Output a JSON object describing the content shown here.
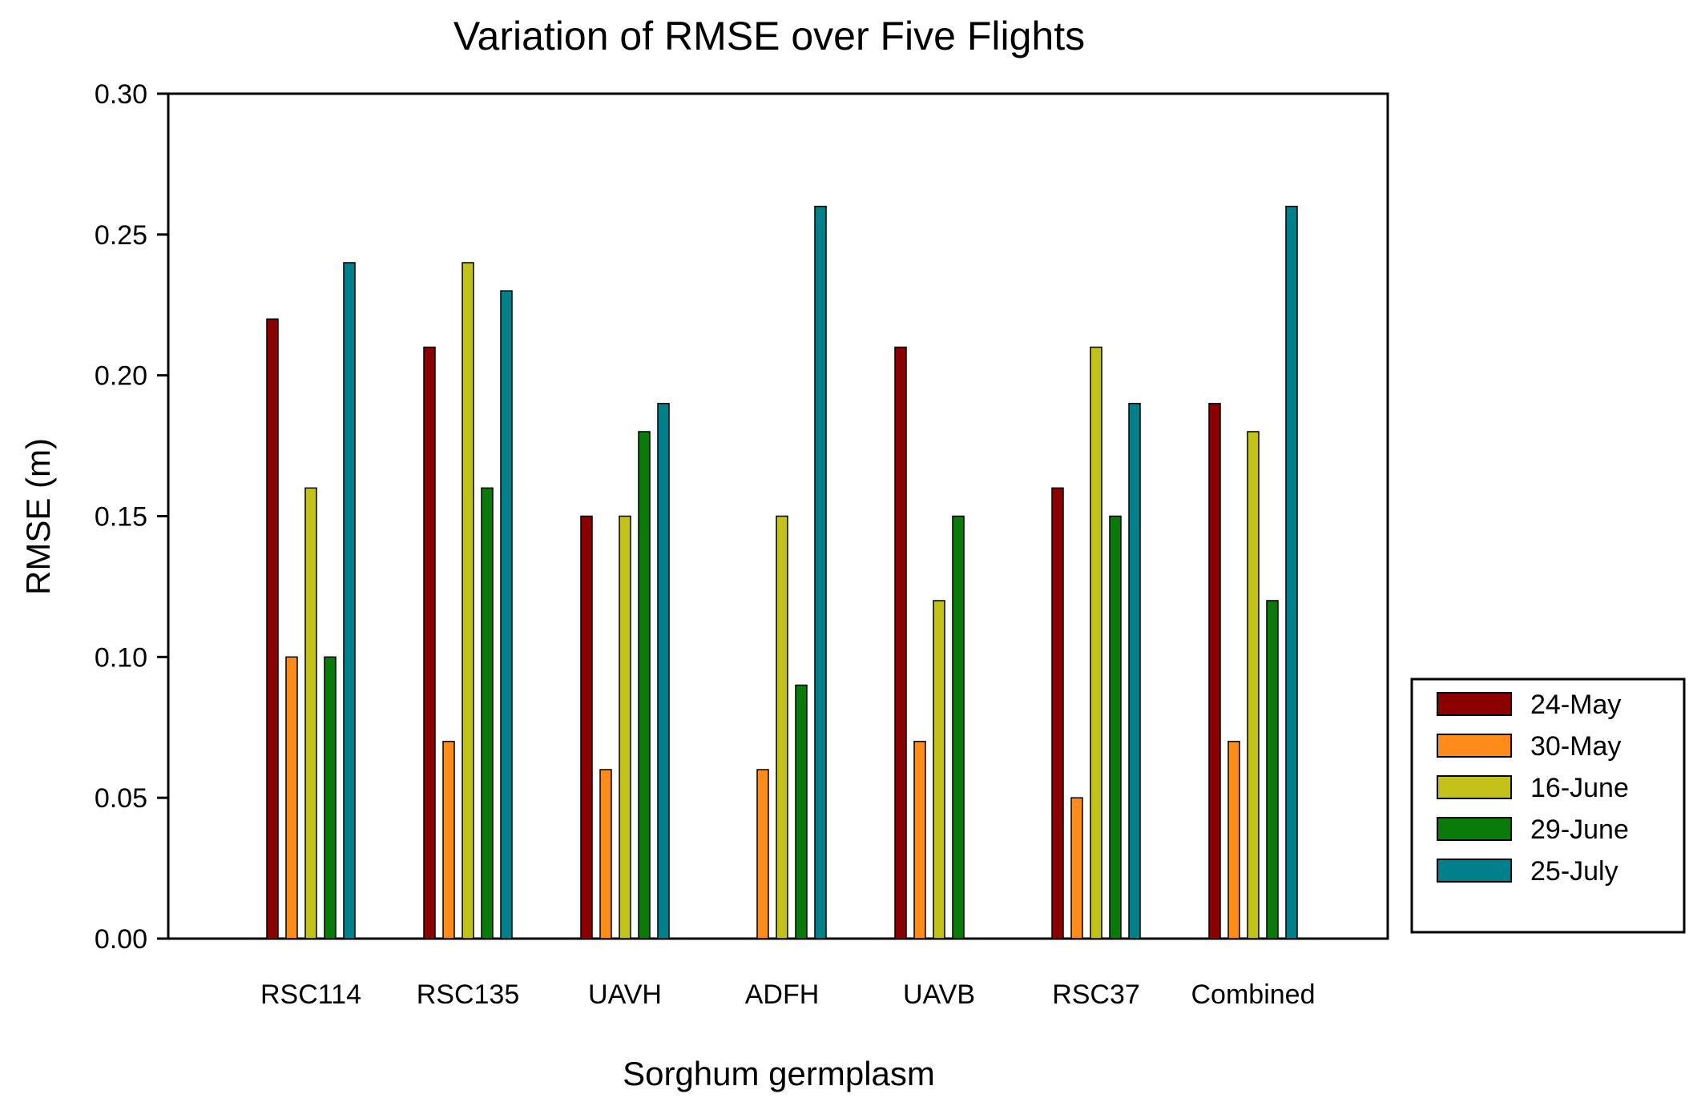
{
  "chart_data": {
    "type": "bar",
    "title": "Variation of RMSE over Five Flights",
    "xlabel": "Sorghum germplasm",
    "ylabel": "RMSE (m)",
    "ylim": [
      0,
      0.3
    ],
    "yticks": [
      "0.00",
      "0.05",
      "0.10",
      "0.15",
      "0.20",
      "0.25",
      "0.30"
    ],
    "categories": [
      "RSC114",
      "RSC135",
      "UAVH",
      "ADFH",
      "UAVB",
      "RSC37",
      "Combined"
    ],
    "legend_position": "right",
    "grid": false,
    "series": [
      {
        "name": "24-May",
        "color": "#8b0000",
        "values": [
          0.22,
          0.21,
          0.15,
          null,
          0.21,
          0.16,
          0.19
        ]
      },
      {
        "name": "30-May",
        "color": "#ff8c1a",
        "values": [
          0.1,
          0.07,
          0.06,
          0.06,
          0.07,
          0.05,
          0.07
        ]
      },
      {
        "name": "16-June",
        "color": "#c2c21a",
        "values": [
          0.16,
          0.24,
          0.15,
          0.15,
          0.12,
          0.21,
          0.18
        ]
      },
      {
        "name": "29-June",
        "color": "#0a7a0a",
        "values": [
          0.1,
          0.16,
          0.18,
          0.09,
          0.15,
          0.15,
          0.12
        ]
      },
      {
        "name": "25-July",
        "color": "#00808a",
        "values": [
          0.24,
          0.23,
          0.19,
          0.26,
          null,
          0.19,
          0.26
        ]
      }
    ]
  }
}
